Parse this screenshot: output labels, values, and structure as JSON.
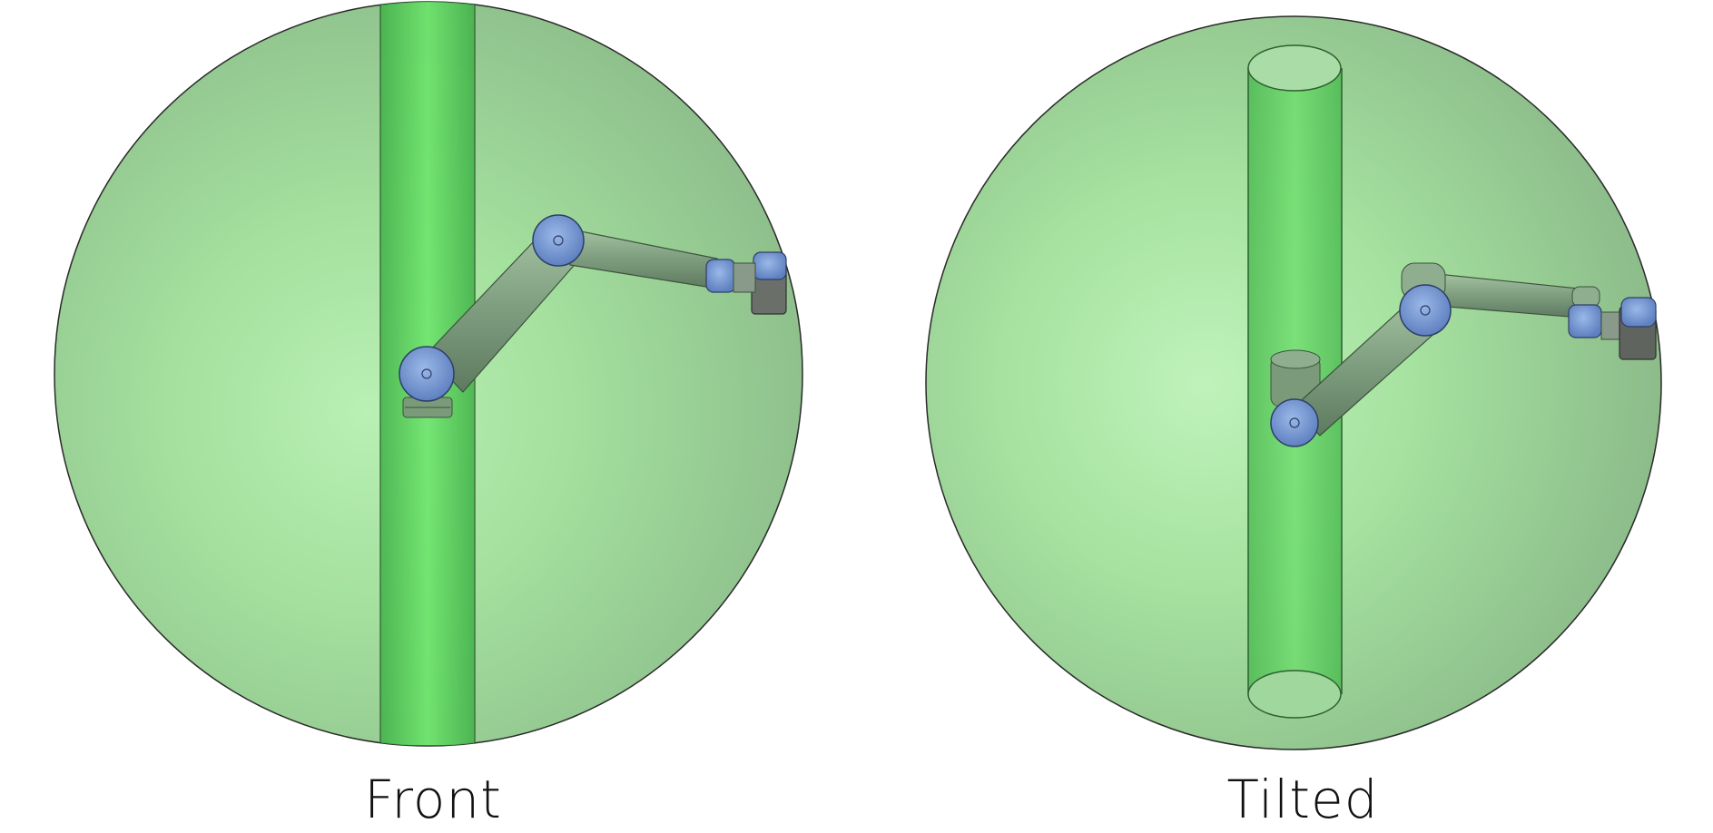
{
  "colors": {
    "sphere_fill": "#9fdc9a",
    "cylinder_fill": "#4fd04f",
    "robot_link": "#8fae8f",
    "robot_joint": "#7c9fd6",
    "outline": "#2a2a2a"
  },
  "views": [
    {
      "label": "Front",
      "icon": "robot-arm-front-view"
    },
    {
      "label": "Tilted",
      "icon": "robot-arm-tilted-view"
    }
  ]
}
